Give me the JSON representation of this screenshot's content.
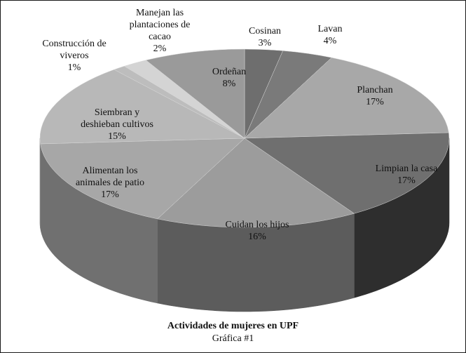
{
  "chart_data": {
    "type": "pie",
    "title": "Actividades de mujeres en UPF",
    "subtitle": "Gráfica #1",
    "slices": [
      {
        "label": "Cosinan",
        "value": 3,
        "value_label": "3%",
        "color": "#6e6e6e",
        "side": "#4a4a4a"
      },
      {
        "label": "Lavan",
        "value": 4,
        "value_label": "4%",
        "color": "#7a7a7a",
        "side": "#505050"
      },
      {
        "label": "Planchan",
        "value": 17,
        "value_label": "17%",
        "color": "#a8a8a8",
        "side": "#6a6a6a"
      },
      {
        "label": "Limpian la casa",
        "value": 17,
        "value_label": "17%",
        "color": "#6f6f6f",
        "side": "#2e2e2e"
      },
      {
        "label": "Cuidan los hijos",
        "value": 16,
        "value_label": "16%",
        "color": "#9c9c9c",
        "side": "#5c5c5c"
      },
      {
        "label": "Alimentan los animales de patio",
        "value": 17,
        "value_label": "17%",
        "color": "#a7a7a7",
        "side": "#707070"
      },
      {
        "label": "Siembran y deshieban cultivos",
        "value": 15,
        "value_label": "15%",
        "color": "#b8b8b8",
        "side": "#808080"
      },
      {
        "label": "Construcción de viveros",
        "value": 1,
        "value_label": "1%",
        "color": "#bdbdbd",
        "side": "#858585"
      },
      {
        "label": "Manejan las plantaciones de cacao",
        "value": 2,
        "value_label": "2%",
        "color": "#d4d4d4",
        "side": "#9a9a9a"
      },
      {
        "label": "Ordeñan",
        "value": 8,
        "value_label": "8%",
        "color": "#9a9a9a",
        "side": "#666666"
      }
    ]
  }
}
